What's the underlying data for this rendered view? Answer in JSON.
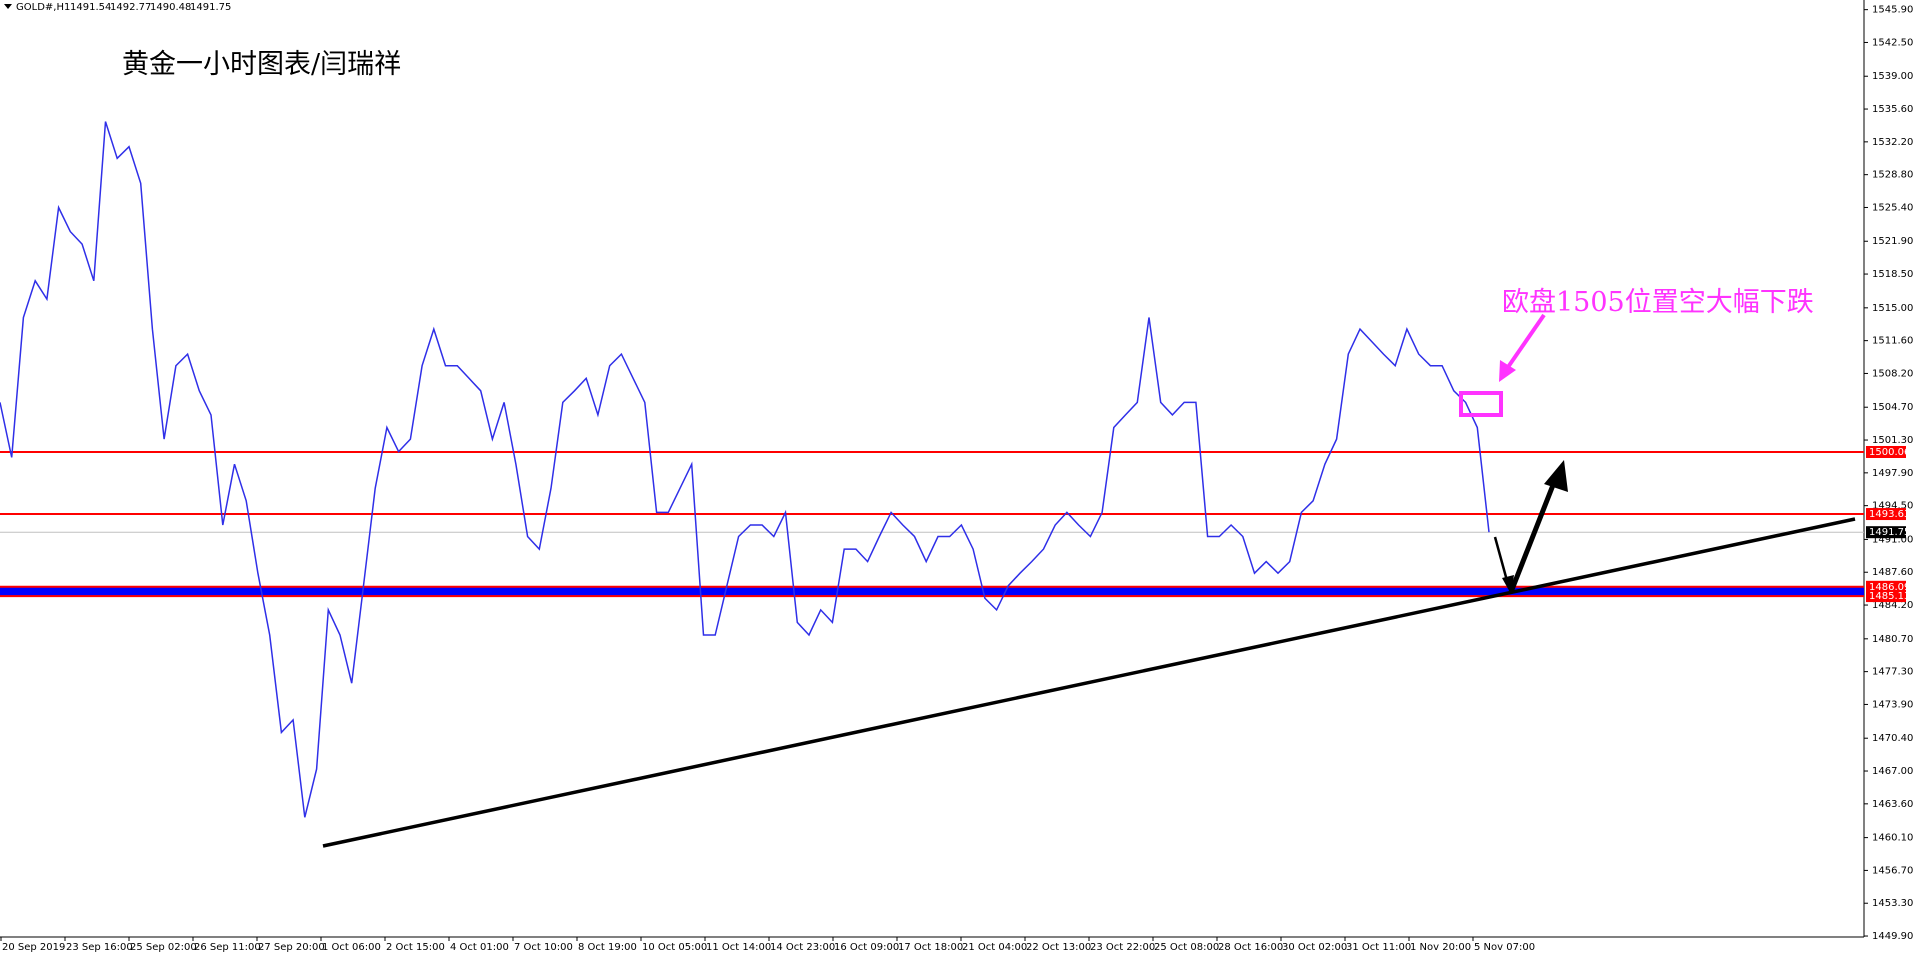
{
  "chart_data": {
    "type": "line",
    "symbol": "GOLD#,H1",
    "ohlc": [
      1491.54,
      1492.77,
      1490.48,
      1491.75
    ],
    "title": "黄金一小时图表/闫瑞祥",
    "annotation": "欧盘1505位置空大幅下跌",
    "color": "#2f2fe8",
    "x_labels": [
      "20 Sep 2019",
      "23 Sep 16:00",
      "25 Sep 02:00",
      "26 Sep 11:00",
      "27 Sep 20:00",
      "1 Oct 06:00",
      "2 Oct 15:00",
      "4 Oct 01:00",
      "7 Oct 10:00",
      "8 Oct 19:00",
      "10 Oct 05:00",
      "11 Oct 14:00",
      "14 Oct 23:00",
      "16 Oct 09:00",
      "17 Oct 18:00",
      "21 Oct 04:00",
      "22 Oct 13:00",
      "23 Oct 22:00",
      "25 Oct 08:00",
      "28 Oct 16:00",
      "30 Oct 02:00",
      "31 Oct 11:00",
      "1 Nov 20:00",
      "5 Nov 07:00"
    ],
    "values": [
      1505.2,
      1499.5,
      1514.0,
      1517.8,
      1515.9,
      1525.4,
      1522.9,
      1521.6,
      1517.8,
      1534.3,
      1530.5,
      1531.7,
      1527.9,
      1512.8,
      1501.4,
      1509.0,
      1510.2,
      1506.4,
      1503.9,
      1492.5,
      1498.8,
      1495.0,
      1487.5,
      1481.1,
      1471.0,
      1472.3,
      1462.2,
      1467.2,
      1483.7,
      1481.1,
      1476.1,
      1486.2,
      1496.3,
      1502.6,
      1500.1,
      1501.4,
      1509.0,
      1512.8,
      1509.0,
      1509.0,
      1507.7,
      1506.4,
      1501.4,
      1505.2,
      1498.8,
      1491.3,
      1490.0,
      1496.3,
      1505.2,
      1506.4,
      1507.7,
      1503.9,
      1509.0,
      1510.2,
      1507.7,
      1505.2,
      1493.8,
      1493.8,
      1496.3,
      1498.8,
      1481.1,
      1481.1,
      1486.2,
      1491.3,
      1492.5,
      1492.5,
      1491.3,
      1493.8,
      1482.4,
      1481.1,
      1483.7,
      1482.4,
      1490.0,
      1490.0,
      1488.7,
      1491.3,
      1493.8,
      1492.5,
      1491.3,
      1488.7,
      1491.3,
      1491.3,
      1492.5,
      1490.0,
      1484.9,
      1483.7,
      1486.2,
      1487.5,
      1488.7,
      1490.0,
      1492.5,
      1493.8,
      1492.5,
      1491.3,
      1493.8,
      1502.6,
      1503.9,
      1505.2,
      1514.0,
      1505.2,
      1503.9,
      1505.2,
      1505.2,
      1491.3,
      1491.3,
      1492.5,
      1491.3,
      1487.5,
      1488.7,
      1487.5,
      1488.7,
      1493.8,
      1495.0,
      1498.8,
      1501.4,
      1510.2,
      1512.8,
      1511.5,
      1510.2,
      1509.0,
      1512.8,
      1510.2,
      1509.0,
      1509.0,
      1506.4,
      1505.2,
      1502.6,
      1491.75
    ],
    "ylim": [
      1449.8,
      1546.9
    ],
    "yticks": [
      {
        "value": 1545.9,
        "label": "1545.90"
      },
      {
        "value": 1542.5,
        "label": "1542.50"
      },
      {
        "value": 1539.0,
        "label": "1539.00"
      },
      {
        "value": 1535.6,
        "label": "1535.60"
      },
      {
        "value": 1532.2,
        "label": "1532.20"
      },
      {
        "value": 1528.8,
        "label": "1528.80"
      },
      {
        "value": 1525.4,
        "label": "1525.40"
      },
      {
        "value": 1521.9,
        "label": "1521.90"
      },
      {
        "value": 1518.5,
        "label": "1518.50"
      },
      {
        "value": 1515.0,
        "label": "1515.00"
      },
      {
        "value": 1511.6,
        "label": "1511.60"
      },
      {
        "value": 1508.2,
        "label": "1508.20"
      },
      {
        "value": 1504.7,
        "label": "1504.70"
      },
      {
        "value": 1501.3,
        "label": "1501.30"
      },
      {
        "value": 1497.9,
        "label": "1497.90"
      },
      {
        "value": 1494.5,
        "label": "1494.50"
      },
      {
        "value": 1491.0,
        "label": "1491.00"
      },
      {
        "value": 1487.6,
        "label": "1487.60"
      },
      {
        "value": 1484.2,
        "label": "1484.20"
      },
      {
        "value": 1480.7,
        "label": "1480.70"
      },
      {
        "value": 1477.3,
        "label": "1477.30"
      },
      {
        "value": 1473.9,
        "label": "1473.90"
      },
      {
        "value": 1470.4,
        "label": "1470.40"
      },
      {
        "value": 1467.0,
        "label": "1467.00"
      },
      {
        "value": 1463.6,
        "label": "1463.60"
      },
      {
        "value": 1460.1,
        "label": "1460.10"
      },
      {
        "value": 1456.7,
        "label": "1456.70"
      },
      {
        "value": 1453.3,
        "label": "1453.30"
      },
      {
        "value": 1449.9,
        "label": "1449.90"
      }
    ],
    "levels": [
      {
        "value": 1500.06,
        "color": "#ff0000"
      },
      {
        "value": 1493.63,
        "color": "#ff0000"
      },
      {
        "value": 1486.09,
        "color": "#ff0000"
      },
      {
        "value": 1485.13,
        "color": "#ff0000"
      }
    ],
    "band_color": "#0000ff"
  }
}
